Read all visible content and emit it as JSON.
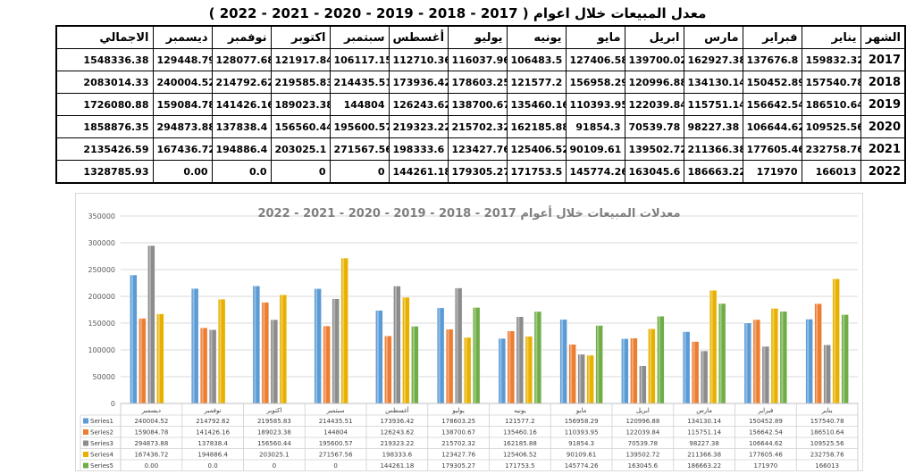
{
  "page": {
    "title": "معدل المبيعات خلال اعوام ( 2017 - 2018 - 2019 - 2020 - 2021 - 2022 )"
  },
  "table": {
    "header_col": "الشهر",
    "months": [
      "يناير",
      "فبراير",
      "مارس",
      "ابريل",
      "مايو",
      "يونيه",
      "يوليو",
      "أغسطس",
      "سبتمبر",
      "اكتوبر",
      "نوفمبر",
      "ديسمبر"
    ],
    "total_label": "الاجمالي",
    "rows": [
      {
        "year": "2017",
        "values": [
          "159832.32",
          "137676.8",
          "162927.38",
          "139700.02",
          "127406.58",
          "106483.5",
          "116037.96",
          "112710.36",
          "106117.15",
          "121917.84",
          "128077.68",
          "129448.79"
        ],
        "total": "1548336.38"
      },
      {
        "year": "2018",
        "values": [
          "157540.78",
          "150452.89",
          "134130.14",
          "120996.88",
          "156958.29",
          "121577.2",
          "178603.25",
          "173936.42",
          "214435.51",
          "219585.83",
          "214792.62",
          "240004.52"
        ],
        "total": "2083014.33"
      },
      {
        "year": "2019",
        "values": [
          "186510.64",
          "156642.54",
          "115751.14",
          "122039.84",
          "110393.95",
          "135460.16",
          "138700.67",
          "126243.62",
          "144804",
          "189023.38",
          "141426.16",
          "159084.78"
        ],
        "total": "1726080.88"
      },
      {
        "year": "2020",
        "values": [
          "109525.56",
          "106644.62",
          "98227.38",
          "70539.78",
          "91854.3",
          "162185.88",
          "215702.32",
          "219323.22",
          "195600.57",
          "156560.44",
          "137838.4",
          "294873.88"
        ],
        "total": "1858876.35"
      },
      {
        "year": "2021",
        "values": [
          "232758.76",
          "177605.46",
          "211366.38",
          "139502.72",
          "90109.61",
          "125406.52",
          "123427.76",
          "198333.6",
          "271567.56",
          "203025.1",
          "194886.4",
          "167436.72"
        ],
        "total": "2135426.59"
      },
      {
        "year": "2022",
        "values": [
          "166013",
          "171970",
          "186663.22",
          "163045.6",
          "145774.26",
          "171753.5",
          "179305.27",
          "144261.18",
          "0",
          "0",
          "0.0",
          "0.00"
        ],
        "total": "1328785.93"
      }
    ]
  },
  "chart_data": {
    "type": "bar",
    "title": "معدلات المبيعات خلال أعوام 2017 - 2018 - 2019 - 2020 - 2021 - 2022",
    "categories": [
      "يناير",
      "فبراير",
      "مارس",
      "ابريل",
      "مايو",
      "يونيه",
      "يوليو",
      "أغسطس",
      "سبتمبر",
      "اكتوبر",
      "نوفمبر",
      "ديسمبر"
    ],
    "ylim": [
      0,
      350000
    ],
    "yticks": [
      0,
      50000,
      100000,
      150000,
      200000,
      250000,
      300000,
      350000
    ],
    "grid": true,
    "legend": "data-table",
    "series": [
      {
        "name": "Series1",
        "color": "#5b9bd5",
        "values": [
          157540.78,
          150452.89,
          134130.14,
          120996.88,
          156958.29,
          121577.2,
          178603.25,
          173936.42,
          214435.51,
          219585.83,
          214792.62,
          240004.52
        ],
        "labels": [
          "157540.78",
          "150452.89",
          "134130.14",
          "120996.88",
          "156958.29",
          "121577.2",
          "178603.25",
          "173936.42",
          "214435.51",
          "219585.83",
          "214792.62",
          "240004.52"
        ]
      },
      {
        "name": "Series2",
        "color": "#ed7d31",
        "values": [
          186510.64,
          156642.54,
          115751.14,
          122039.84,
          110393.95,
          135460.16,
          138700.67,
          126243.62,
          144804,
          189023.38,
          141426.16,
          159084.78
        ],
        "labels": [
          "186510.64",
          "156642.54",
          "115751.14",
          "122039.84",
          "110393.95",
          "135460.16",
          "138700.67",
          "126243.62",
          "144804",
          "189023.38",
          "141426.16",
          "159084.78"
        ]
      },
      {
        "name": "Series3",
        "color": "#8c8c8c",
        "values": [
          109525.56,
          106644.62,
          98227.38,
          70539.78,
          91854.3,
          162185.88,
          215702.32,
          219323.22,
          195600.57,
          156560.44,
          137838.4,
          294873.88
        ],
        "labels": [
          "109525.56",
          "106644.62",
          "98227.38",
          "70539.78",
          "91854.3",
          "162185.88",
          "215702.32",
          "219323.22",
          "195600.57",
          "156560.44",
          "137838.4",
          "294873.88"
        ]
      },
      {
        "name": "Series4",
        "color": "#e8b100",
        "values": [
          232758.76,
          177605.46,
          211366.38,
          139502.72,
          90109.61,
          125406.52,
          123427.76,
          198333.6,
          271567.56,
          203025.1,
          194886.4,
          167436.72
        ],
        "labels": [
          "232758.76",
          "177605.46",
          "211366.38",
          "139502.72",
          "90109.61",
          "125406.52",
          "123427.76",
          "198333.6",
          "271567.56",
          "203025.1",
          "194886.4",
          "167436.72"
        ]
      },
      {
        "name": "Series5",
        "color": "#70ad47",
        "values": [
          166013,
          171970,
          186663.22,
          163045.6,
          145774.26,
          171753.5,
          179305.27,
          144261.18,
          0,
          0,
          0,
          0
        ],
        "labels": [
          "166013",
          "171970",
          "186663.22",
          "163045.6",
          "145774.26",
          "171753.5",
          "179305.27",
          "144261.18",
          "0",
          "0",
          "0.0",
          "0.00"
        ]
      }
    ]
  }
}
